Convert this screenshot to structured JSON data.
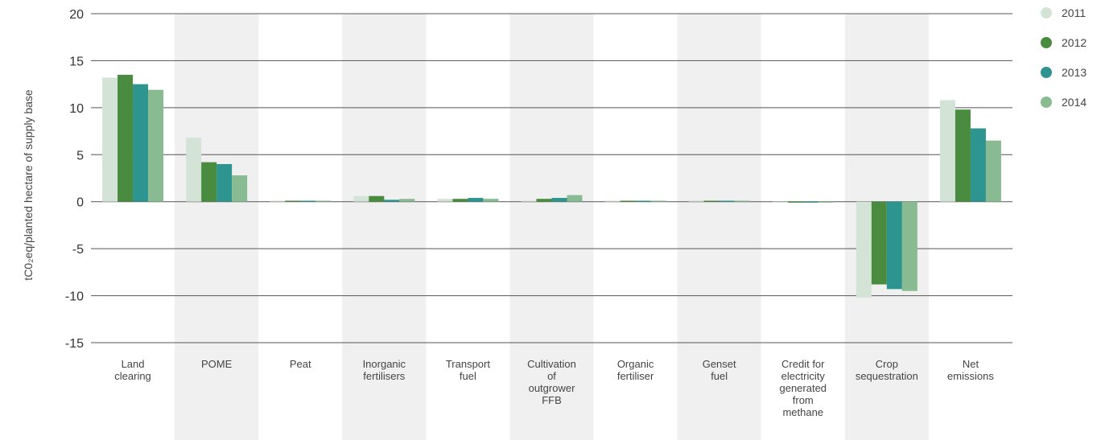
{
  "chart_data": {
    "type": "bar",
    "title": "",
    "xlabel": "",
    "ylabel": "tC0₂eq/planted hectare of supply base",
    "ylim": [
      -15,
      20
    ],
    "yticks": [
      20,
      15,
      10,
      5,
      0,
      -5,
      -10,
      -15
    ],
    "grid": true,
    "legend_position": "top-right",
    "categories": [
      [
        "Land",
        "clearing"
      ],
      [
        "POME"
      ],
      [
        "Peat"
      ],
      [
        "Inorganic",
        "fertilisers"
      ],
      [
        "Transport",
        "fuel"
      ],
      [
        "Cultivation",
        "of",
        "outgrower",
        "FFB"
      ],
      [
        "Organic",
        "fertiliser"
      ],
      [
        "Genset",
        "fuel"
      ],
      [
        "Credit for",
        "electricity",
        "generated",
        "from",
        "methane"
      ],
      [
        "Crop",
        "sequestration"
      ],
      [
        "Net",
        "emissions"
      ]
    ],
    "series": [
      {
        "name": "2011",
        "color": "#d3e4d6",
        "values": [
          13.2,
          6.8,
          0.0,
          0.6,
          0.3,
          0.1,
          0.1,
          0.05,
          -0.05,
          -10.2,
          10.8
        ]
      },
      {
        "name": "2012",
        "color": "#4a8c3f",
        "values": [
          13.5,
          4.2,
          0.0,
          0.6,
          0.3,
          0.3,
          0.1,
          0.05,
          -0.1,
          -8.8,
          9.8
        ]
      },
      {
        "name": "2013",
        "color": "#2e9490",
        "values": [
          12.5,
          4.0,
          0.1,
          0.2,
          0.4,
          0.4,
          0.1,
          0.1,
          -0.1,
          -9.3,
          7.8
        ]
      },
      {
        "name": "2014",
        "color": "#88bb91",
        "values": [
          11.9,
          2.8,
          0.1,
          0.3,
          0.3,
          0.7,
          0.05,
          0.05,
          -0.05,
          -9.5,
          6.5
        ]
      }
    ]
  }
}
